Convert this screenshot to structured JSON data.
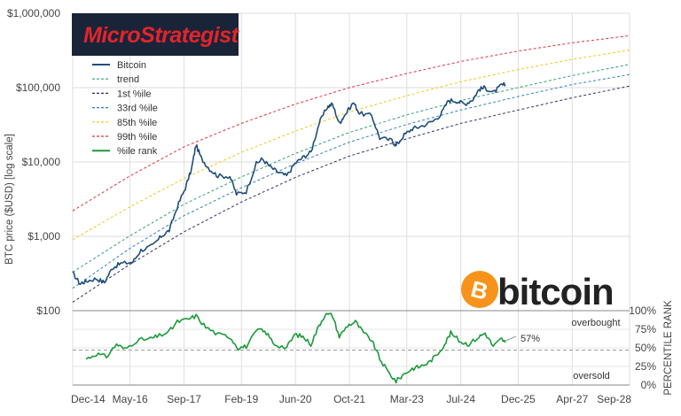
{
  "chart_data": [
    {
      "type": "line",
      "name": "price",
      "yscale": "log",
      "ylim": [
        100,
        1000000
      ],
      "ylabel": "BTC price ($USD) [log scale]",
      "y_ticks": [
        {
          "value": 100,
          "label": "$100"
        },
        {
          "value": 1000,
          "label": "$1,000"
        },
        {
          "value": 10000,
          "label": "$10,000"
        },
        {
          "value": 100000,
          "label": "$100,000"
        },
        {
          "value": 1000000,
          "label": "$1,000,000"
        }
      ],
      "xlim": [
        2014.917,
        2028.667
      ],
      "x_ticks": [
        {
          "value": 2014.917,
          "label": "Dec-14"
        },
        {
          "value": 2016.333,
          "label": "May-16"
        },
        {
          "value": 2017.667,
          "label": "Sep-17"
        },
        {
          "value": 2019.083,
          "label": "Feb-19"
        },
        {
          "value": 2020.417,
          "label": "Jun-20"
        },
        {
          "value": 2021.75,
          "label": "Oct-21"
        },
        {
          "value": 2023.167,
          "label": "Mar-23"
        },
        {
          "value": 2024.5,
          "label": "Jul-24"
        },
        {
          "value": 2025.917,
          "label": "Dec-25"
        },
        {
          "value": 2027.25,
          "label": "Apr-27"
        },
        {
          "value": 2028.667,
          "label": "Sep-28"
        }
      ],
      "legend": [
        {
          "label": "Bitcoin",
          "color": "#1f4e79",
          "style": "solid"
        },
        {
          "label": "trend",
          "color": "#33a070",
          "style": "dashed"
        },
        {
          "label": "1st %ile",
          "color": "#2f2f5f",
          "style": "dashed"
        },
        {
          "label": "33rd %ile",
          "color": "#2f7fc0",
          "style": "dashed"
        },
        {
          "label": "85th %ile",
          "color": "#f5c518",
          "style": "dashed"
        },
        {
          "label": "99th %ile",
          "color": "#e0303a",
          "style": "dashed"
        },
        {
          "label": "%ile rank",
          "color": "#1a9a3a",
          "style": "solid"
        }
      ],
      "bands": [
        {
          "name": "1st %ile",
          "color": "#2f2f5f",
          "x": [
            2014.917,
            2016.333,
            2017.667,
            2019.083,
            2020.417,
            2021.75,
            2023.167,
            2024.5,
            2025.917,
            2027.25,
            2028.667
          ],
          "y": [
            130,
            420,
            1150,
            2900,
            6200,
            12000,
            20500,
            33000,
            50000,
            73000,
            105000
          ]
        },
        {
          "name": "33rd %ile",
          "color": "#2f7fc0",
          "x": [
            2014.917,
            2016.333,
            2017.667,
            2019.083,
            2020.417,
            2021.75,
            2023.167,
            2024.5,
            2025.917,
            2027.25,
            2028.667
          ],
          "y": [
            200,
            690,
            1900,
            4500,
            9500,
            18500,
            32000,
            50000,
            76000,
            110000,
            150000
          ]
        },
        {
          "name": "trend",
          "color": "#33a070",
          "x": [
            2014.917,
            2016.333,
            2017.667,
            2019.083,
            2020.417,
            2021.75,
            2023.167,
            2024.5,
            2025.917,
            2027.25,
            2028.667
          ],
          "y": [
            330,
            1020,
            2700,
            6300,
            13000,
            25000,
            43000,
            67000,
            100000,
            145000,
            205000
          ]
        },
        {
          "name": "85th %ile",
          "color": "#f5c518",
          "x": [
            2014.917,
            2016.333,
            2017.667,
            2019.083,
            2020.417,
            2021.75,
            2023.167,
            2024.5,
            2025.917,
            2027.25,
            2028.667
          ],
          "y": [
            900,
            2500,
            6000,
            13500,
            26000,
            47000,
            78000,
            120000,
            175000,
            240000,
            320000
          ]
        },
        {
          "name": "99th %ile",
          "color": "#e0303a",
          "x": [
            2014.917,
            2016.333,
            2017.667,
            2019.083,
            2020.417,
            2021.75,
            2023.167,
            2024.5,
            2025.917,
            2027.25,
            2028.667
          ],
          "y": [
            2200,
            6500,
            16000,
            33000,
            60000,
            100000,
            155000,
            225000,
            310000,
            400000,
            500000
          ]
        }
      ],
      "series": [
        {
          "name": "Bitcoin",
          "color": "#1f4e79",
          "x": [
            2014.917,
            2015.1,
            2015.25,
            2015.5,
            2015.7,
            2015.9,
            2016.1,
            2016.4,
            2016.6,
            2016.9,
            2017.1,
            2017.3,
            2017.5,
            2017.7,
            2017.85,
            2017.96,
            2018.1,
            2018.3,
            2018.5,
            2018.8,
            2018.96,
            2019.2,
            2019.45,
            2019.6,
            2019.8,
            2020.0,
            2020.2,
            2020.4,
            2020.6,
            2020.8,
            2021.0,
            2021.2,
            2021.33,
            2021.5,
            2021.6,
            2021.85,
            2022.0,
            2022.3,
            2022.5,
            2022.8,
            2022.9,
            2023.1,
            2023.3,
            2023.5,
            2023.8,
            2024.0,
            2024.2,
            2024.4,
            2024.6,
            2024.8,
            2024.95,
            2025.1,
            2025.3,
            2025.5,
            2025.6
          ],
          "y": [
            320,
            230,
            250,
            270,
            240,
            380,
            430,
            450,
            650,
            750,
            1000,
            1200,
            2500,
            4500,
            8000,
            17000,
            11000,
            8000,
            6500,
            6400,
            3700,
            4000,
            9500,
            11000,
            8500,
            7200,
            6500,
            9500,
            11500,
            13500,
            33000,
            55000,
            60000,
            33000,
            40000,
            63000,
            45000,
            42000,
            21000,
            19500,
            16500,
            23000,
            28000,
            30000,
            35000,
            43000,
            68000,
            66000,
            60000,
            70000,
            95000,
            100000,
            85000,
            107000,
            110000
          ]
        }
      ]
    },
    {
      "type": "line",
      "name": "percentile",
      "ylim": [
        0,
        100
      ],
      "ylabel": "PERCENTILE RANK",
      "y_ticks": [
        {
          "value": 0,
          "label": "0%"
        },
        {
          "value": 25,
          "label": "25%"
        },
        {
          "value": 50,
          "label": "50%"
        },
        {
          "value": 75,
          "label": "75%"
        },
        {
          "value": 100,
          "label": "100%"
        }
      ],
      "reference_line": 47,
      "annotations": [
        {
          "text": "overbought"
        },
        {
          "text": "oversold"
        },
        {
          "text": "57%"
        }
      ],
      "series": [
        {
          "name": "%ile rank",
          "color": "#1a9a3a",
          "x": [
            2015.25,
            2015.5,
            2015.75,
            2016.0,
            2016.2,
            2016.5,
            2016.8,
            2017.0,
            2017.3,
            2017.5,
            2017.75,
            2017.96,
            2018.2,
            2018.5,
            2018.8,
            2019.0,
            2019.2,
            2019.5,
            2019.7,
            2019.9,
            2020.2,
            2020.4,
            2020.6,
            2020.8,
            2021.0,
            2021.15,
            2021.33,
            2021.5,
            2021.7,
            2021.9,
            2022.1,
            2022.3,
            2022.5,
            2022.7,
            2022.9,
            2023.1,
            2023.3,
            2023.5,
            2023.7,
            2023.9,
            2024.1,
            2024.25,
            2024.5,
            2024.7,
            2024.95,
            2025.1,
            2025.3,
            2025.5,
            2025.6
          ],
          "y": [
            35,
            42,
            38,
            55,
            48,
            60,
            62,
            65,
            72,
            85,
            88,
            93,
            78,
            68,
            65,
            50,
            52,
            75,
            70,
            55,
            50,
            68,
            65,
            55,
            80,
            95,
            94,
            65,
            80,
            85,
            70,
            60,
            35,
            18,
            5,
            15,
            22,
            25,
            30,
            40,
            55,
            70,
            58,
            55,
            65,
            70,
            52,
            62,
            57
          ]
        }
      ]
    }
  ],
  "brand": {
    "logo_text": "MicroStrategist",
    "bitcoin_word": "bitcoin",
    "bitcoin_symbol": "B"
  }
}
